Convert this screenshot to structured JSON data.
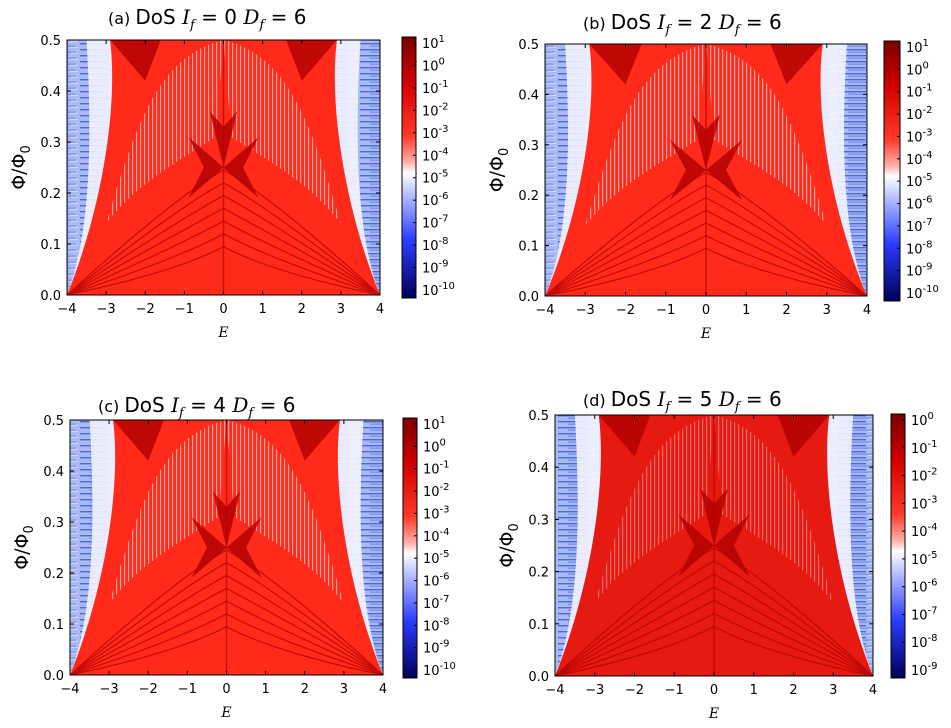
{
  "chart_data": [
    {
      "type": "heatmap",
      "panel_label": "(a)",
      "title_prefix": "DoS",
      "I_sym": "I",
      "I_sub": "f",
      "I_val": "0",
      "D_sym": "D",
      "D_sub": "f",
      "D_val": "6",
      "xlabel": "E",
      "ylabel": "Φ/Φ",
      "ylabel_sub": "0",
      "xlim": [
        -4,
        4
      ],
      "ylim": [
        0,
        0.5
      ],
      "xticks": [
        "−4",
        "−3",
        "−2",
        "−1",
        "0",
        "1",
        "2",
        "3",
        "4"
      ],
      "yticks": [
        "0.0",
        "0.1",
        "0.2",
        "0.3",
        "0.4",
        "0.5"
      ],
      "colorbar": {
        "scale": "log",
        "exponents": [
          "1",
          "0",
          "-1",
          "-2",
          "-3",
          "-4",
          "-5",
          "-6",
          "-7",
          "-8",
          "-9",
          "-10"
        ],
        "base": "10"
      },
      "band_edge_at_top": 2.9,
      "band_edge_at_bottom": 4.0,
      "colors": {
        "high": "#b00000",
        "mid": "#ff2a1a",
        "low": "#eaf0ff",
        "lowest": "#1428c8"
      }
    },
    {
      "type": "heatmap",
      "panel_label": "(b)",
      "title_prefix": "DoS",
      "I_sym": "I",
      "I_sub": "f",
      "I_val": "2",
      "D_sym": "D",
      "D_sub": "f",
      "D_val": "6",
      "xlabel": "E",
      "ylabel": "Φ/Φ",
      "ylabel_sub": "0",
      "xlim": [
        -4,
        4
      ],
      "ylim": [
        0,
        0.5
      ],
      "xticks": [
        "−4",
        "−3",
        "−2",
        "−1",
        "0",
        "1",
        "2",
        "3",
        "4"
      ],
      "yticks": [
        "0.0",
        "0.1",
        "0.2",
        "0.3",
        "0.4",
        "0.5"
      ],
      "colorbar": {
        "scale": "log",
        "exponents": [
          "1",
          "0",
          "-1",
          "-2",
          "-3",
          "-4",
          "-5",
          "-6",
          "-7",
          "-8",
          "-9",
          "-10"
        ],
        "base": "10"
      },
      "band_edge_at_top": 2.9,
      "band_edge_at_bottom": 4.0,
      "colors": {
        "high": "#b00000",
        "mid": "#ff2a1a",
        "low": "#eaf0ff",
        "lowest": "#1428c8"
      }
    },
    {
      "type": "heatmap",
      "panel_label": "(c)",
      "title_prefix": "DoS",
      "I_sym": "I",
      "I_sub": "f",
      "I_val": "4",
      "D_sym": "D",
      "D_sub": "f",
      "D_val": "6",
      "xlabel": "E",
      "ylabel": "Φ/Φ",
      "ylabel_sub": "0",
      "xlim": [
        -4,
        4
      ],
      "ylim": [
        0,
        0.5
      ],
      "xticks": [
        "−4",
        "−3",
        "−2",
        "−1",
        "0",
        "1",
        "2",
        "3",
        "4"
      ],
      "yticks": [
        "0.0",
        "0.1",
        "0.2",
        "0.3",
        "0.4",
        "0.5"
      ],
      "colorbar": {
        "scale": "log",
        "exponents": [
          "1",
          "0",
          "-1",
          "-2",
          "-3",
          "-4",
          "-5",
          "-6",
          "-7",
          "-8",
          "-9",
          "-10"
        ],
        "base": "10"
      },
      "band_edge_at_top": 2.9,
      "band_edge_at_bottom": 4.0,
      "colors": {
        "high": "#b00000",
        "mid": "#ff2a1a",
        "low": "#eef2ff",
        "lowest": "#1428c8"
      }
    },
    {
      "type": "heatmap",
      "panel_label": "(d)",
      "title_prefix": "DoS",
      "I_sym": "I",
      "I_sub": "f",
      "I_val": "5",
      "D_sym": "D",
      "D_sub": "f",
      "D_val": "6",
      "xlabel": "E",
      "ylabel": "Φ/Φ",
      "ylabel_sub": "0",
      "xlim": [
        -4,
        4
      ],
      "ylim": [
        0,
        0.5
      ],
      "xticks": [
        "−4",
        "−3",
        "−2",
        "−1",
        "0",
        "1",
        "2",
        "3",
        "4"
      ],
      "yticks": [
        "0.0",
        "0.1",
        "0.2",
        "0.3",
        "0.4",
        "0.5"
      ],
      "colorbar": {
        "scale": "log",
        "exponents": [
          "0",
          "-1",
          "-2",
          "-3",
          "-4",
          "-5",
          "-6",
          "-7",
          "-8",
          "-9"
        ],
        "base": "10"
      },
      "band_edge_at_top": 2.9,
      "band_edge_at_bottom": 4.0,
      "colors": {
        "high": "#b00000",
        "mid": "#e61a10",
        "low": "#eef2ff",
        "lowest": "#1428c8"
      }
    }
  ]
}
